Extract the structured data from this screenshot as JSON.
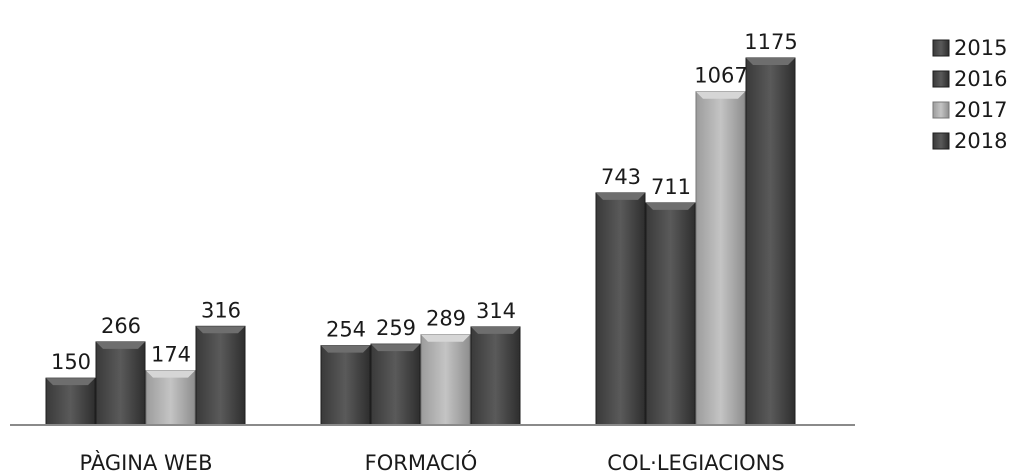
{
  "chart_data": {
    "type": "bar",
    "title": "",
    "xlabel": "",
    "ylabel": "",
    "categories": [
      "PÀGINA WEB",
      "FORMACIÓ",
      "COL·LEGIACIONS"
    ],
    "series": [
      {
        "name": "2015",
        "values": [
          150,
          254,
          743
        ],
        "color": "#4a4a4a"
      },
      {
        "name": "2016",
        "values": [
          266,
          259,
          711
        ],
        "color": "#4a4a4a"
      },
      {
        "name": "2017",
        "values": [
          174,
          289,
          1067
        ],
        "color": "#a9a9a9"
      },
      {
        "name": "2018",
        "values": [
          316,
          314,
          1175
        ],
        "color": "#4a4a4a"
      }
    ],
    "ylim": [
      0,
      1175
    ],
    "grid": false,
    "legend": "top-right",
    "data_labels": true
  }
}
